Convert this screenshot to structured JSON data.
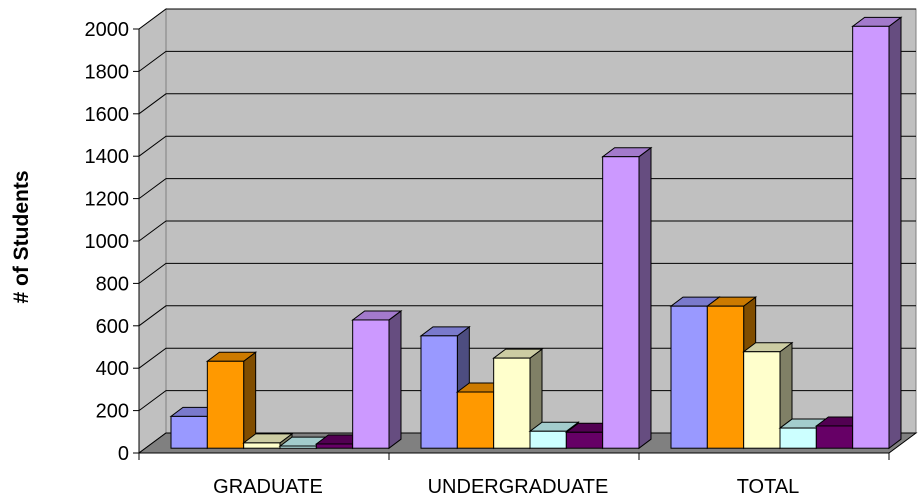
{
  "chart_data": {
    "type": "bar",
    "title": "",
    "xlabel": "",
    "ylabel": "# of Students",
    "ylim": [
      0,
      2000
    ],
    "yticks": [
      0,
      200,
      400,
      600,
      800,
      1000,
      1200,
      1400,
      1600,
      1800,
      2000
    ],
    "categories": [
      "GRADUATE",
      "UNDERGRADUATE",
      "TOTAL"
    ],
    "grid": true,
    "legend": "none",
    "series": [
      {
        "values": [
          150,
          530,
          670
        ],
        "color": "#9999ff"
      },
      {
        "values": [
          410,
          265,
          670
        ],
        "color": "#ff9900"
      },
      {
        "values": [
          25,
          425,
          455
        ],
        "color": "#ffffcc"
      },
      {
        "values": [
          10,
          80,
          95
        ],
        "color": "#ccffff"
      },
      {
        "values": [
          20,
          75,
          105
        ],
        "color": "#660066"
      },
      {
        "values": [
          605,
          1375,
          1990
        ],
        "color": "#cc99ff"
      }
    ],
    "colors": {
      "wall": "#c0c0c0",
      "floor": "#808080",
      "gridline": "#000000"
    }
  }
}
